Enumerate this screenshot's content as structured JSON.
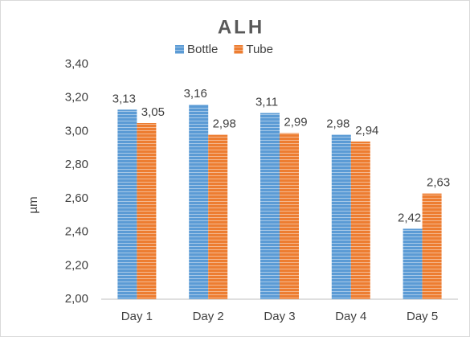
{
  "chart_data": {
    "type": "bar",
    "title": "ALH",
    "y_label": "µm",
    "categories": [
      "Day 1",
      "Day 2",
      "Day 3",
      "Day 4",
      "Day 5"
    ],
    "series": [
      {
        "name": "Bottle",
        "color": "#5b9bd5",
        "values": [
          3.13,
          3.16,
          3.11,
          2.98,
          2.42
        ],
        "value_labels": [
          "3,13",
          "3,16",
          "3,11",
          "2,98",
          "2,42"
        ]
      },
      {
        "name": "Tube",
        "color": "#ed7d31",
        "values": [
          3.05,
          2.98,
          2.99,
          2.94,
          2.63
        ],
        "value_labels": [
          "3,05",
          "2,98",
          "2,99",
          "2,94",
          "2,63"
        ]
      }
    ],
    "ylim": [
      2.0,
      3.4
    ],
    "yticks": [
      {
        "value": 2.0,
        "label": "2,00"
      },
      {
        "value": 2.2,
        "label": "2,20"
      },
      {
        "value": 2.4,
        "label": "2,40"
      },
      {
        "value": 2.6,
        "label": "2,60"
      },
      {
        "value": 2.8,
        "label": "2,80"
      },
      {
        "value": 3.0,
        "label": "3,00"
      },
      {
        "value": 3.2,
        "label": "3,20"
      },
      {
        "value": 3.4,
        "label": "3,40"
      }
    ],
    "legend": "top",
    "grid": false
  }
}
